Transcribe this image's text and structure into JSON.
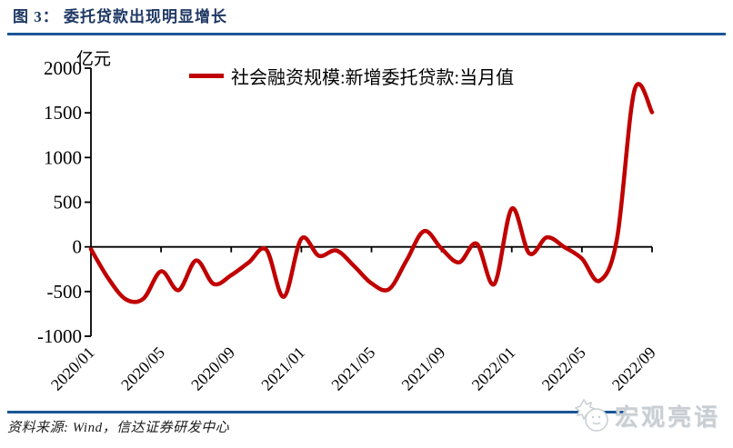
{
  "header": {
    "title": "图 3： 委托贷款出现明显增长"
  },
  "chart_data": {
    "type": "line",
    "title": "",
    "unit_label": "亿元",
    "legend_position": "top",
    "grid": false,
    "ylim": [
      -1000,
      2000
    ],
    "y_ticks": [
      "2000",
      "1500",
      "1000",
      "500",
      "0",
      "-500",
      "-1000"
    ],
    "y_tick_values": [
      2000,
      1500,
      1000,
      500,
      0,
      -500,
      -1000
    ],
    "x_tick_labels": [
      "2020/01",
      "2020/05",
      "2020/09",
      "2021/01",
      "2021/05",
      "2021/09",
      "2022/01",
      "2022/05",
      "2022/09"
    ],
    "categories": [
      "2020/01",
      "2020/02",
      "2020/03",
      "2020/04",
      "2020/05",
      "2020/06",
      "2020/07",
      "2020/08",
      "2020/09",
      "2020/10",
      "2020/11",
      "2020/12",
      "2021/01",
      "2021/02",
      "2021/03",
      "2021/04",
      "2021/05",
      "2021/06",
      "2021/07",
      "2021/08",
      "2021/09",
      "2021/10",
      "2021/11",
      "2021/12",
      "2022/01",
      "2022/02",
      "2022/03",
      "2022/04",
      "2022/05",
      "2022/06",
      "2022/07",
      "2022/08",
      "2022/09"
    ],
    "series": [
      {
        "name": "社会融资规模:新增委托贷款:当月值",
        "color": "#C00000",
        "values": [
          -26,
          -356,
          -588,
          -579,
          -273,
          -484,
          -152,
          -415,
          -317,
          -174,
          -31,
          -559,
          91,
          -100,
          -41,
          -213,
          -408,
          -473,
          -151,
          177,
          -22,
          -173,
          35,
          -416,
          428,
          -74,
          106,
          -2,
          -132,
          -380,
          89,
          1755,
          1507
        ]
      }
    ]
  },
  "footer": {
    "source": "资料来源: Wind，信达证券研发中心",
    "watermark": "宏观亮语"
  },
  "colors": {
    "title": "#1F3864",
    "rule": "#1B5596",
    "line": "#C00000",
    "axis": "#000000",
    "watermark": "#C9CED3"
  }
}
